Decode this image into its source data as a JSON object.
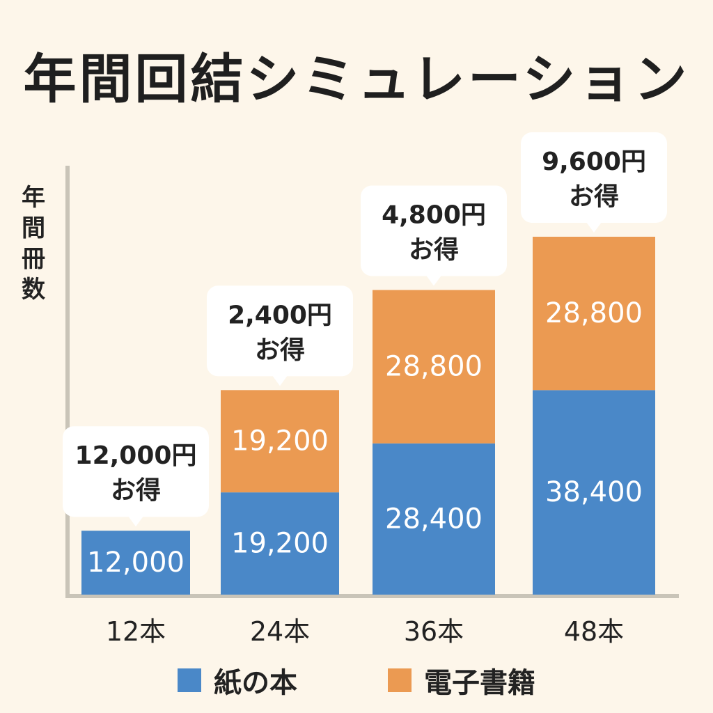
{
  "colors": {
    "paper": "#4a88c8",
    "ebook": "#eb9a52",
    "axis": "#c9c4b8",
    "background": "#fdf6ea"
  },
  "chart_data": {
    "type": "bar",
    "stacked": true,
    "title": "年間回結シミュレーション",
    "ylabel": "年間冊数",
    "xlabel": "",
    "categories": [
      "12本",
      "24本",
      "36本",
      "48本"
    ],
    "series": [
      {
        "name": "紙の本",
        "values": [
          12000,
          19200,
          28400,
          38400
        ]
      },
      {
        "name": "電子書籍",
        "values": [
          null,
          19200,
          28800,
          28800
        ]
      }
    ],
    "data_labels": [
      [
        "12,000",
        "19,200",
        "28,400",
        "38,400"
      ],
      [
        "",
        "19,200",
        "28,800",
        "28,800"
      ]
    ],
    "annotations": [
      {
        "line1": "12,000円",
        "line2": "お得"
      },
      {
        "line1": "2,400円",
        "line2": "お得"
      },
      {
        "line1": "4,800円",
        "line2": "お得"
      },
      {
        "line1": "9,600円",
        "line2": "お得"
      }
    ],
    "grid": false,
    "legend_position": "bottom"
  }
}
